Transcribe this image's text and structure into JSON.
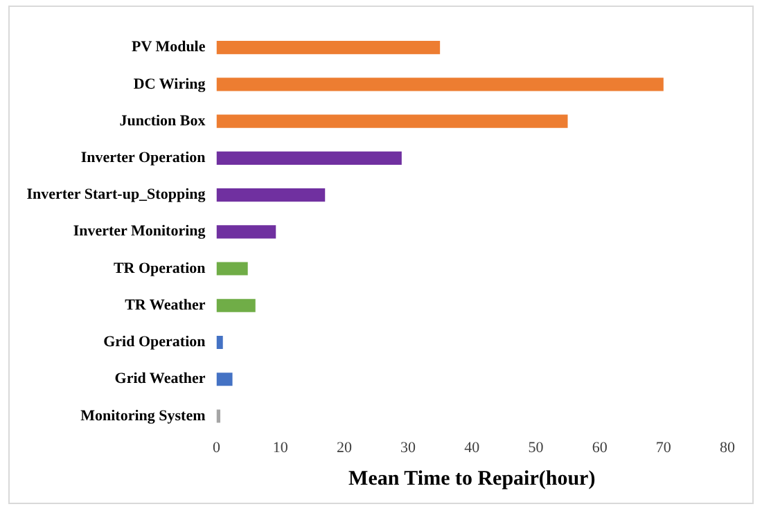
{
  "chart_data": {
    "type": "bar",
    "orientation": "horizontal",
    "xlabel": "Mean Time to Repair(hour)",
    "categories": [
      "PV Module",
      "DC Wiring",
      "Junction Box",
      "Inverter Operation",
      "Inverter Start-up_Stopping",
      "Inverter Monitoring",
      "TR Operation",
      "TR Weather",
      "Grid Operation",
      "Grid Weather",
      "Monitoring System"
    ],
    "values": [
      35,
      70,
      55,
      29,
      17,
      9.3,
      4.9,
      6.1,
      1,
      2.5,
      0.6
    ],
    "colors": [
      "#ed7d31",
      "#ed7d31",
      "#ed7d31",
      "#7030a0",
      "#7030a0",
      "#7030a0",
      "#70ad47",
      "#70ad47",
      "#4472c4",
      "#4472c4",
      "#a5a5a5"
    ],
    "xlim": [
      0,
      80
    ],
    "xticks": [
      0,
      10,
      20,
      30,
      40,
      50,
      60,
      70,
      80
    ],
    "grid": false,
    "legend": false
  }
}
